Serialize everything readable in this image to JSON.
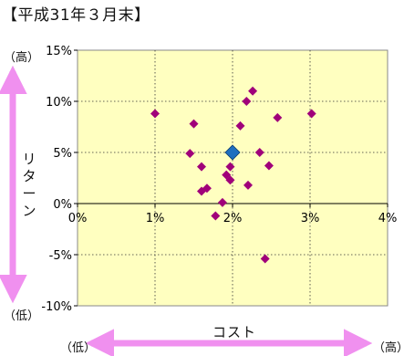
{
  "title": "【平成31年３月末】",
  "labels": {
    "high_top": "（高）",
    "low_left": "（低）",
    "low_bottom": "（低）",
    "high_right": "（高）"
  },
  "colors": {
    "plot_bg": "#ffffc0",
    "point": "#a0007a",
    "highlight": "#1f6fbf",
    "arrow": "#f090ef"
  },
  "chart_data": {
    "type": "scatter",
    "xlabel": "コスト",
    "ylabel": "リターン",
    "xlim": [
      0,
      4
    ],
    "ylim": [
      -10,
      15
    ],
    "x_ticks": [
      {
        "value": 0,
        "label": "0%"
      },
      {
        "value": 1,
        "label": "1%"
      },
      {
        "value": 2,
        "label": "2%"
      },
      {
        "value": 3,
        "label": "3%"
      },
      {
        "value": 4,
        "label": "4%"
      }
    ],
    "y_ticks": [
      {
        "value": 15,
        "label": "15%"
      },
      {
        "value": 10,
        "label": "10%"
      },
      {
        "value": 5,
        "label": "5%"
      },
      {
        "value": 0,
        "label": "0%"
      },
      {
        "value": -5,
        "label": "-5%"
      },
      {
        "value": -10,
        "label": "-10%"
      }
    ],
    "grid": true,
    "series": [
      {
        "points": [
          {
            "x": 1.0,
            "y": 8.8
          },
          {
            "x": 1.5,
            "y": 7.8
          },
          {
            "x": 1.45,
            "y": 4.9
          },
          {
            "x": 1.6,
            "y": 3.6
          },
          {
            "x": 1.6,
            "y": 1.2
          },
          {
            "x": 1.67,
            "y": 1.5
          },
          {
            "x": 1.78,
            "y": -1.2
          },
          {
            "x": 1.87,
            "y": 0.1
          },
          {
            "x": 1.92,
            "y": 2.8
          },
          {
            "x": 1.97,
            "y": 3.6
          },
          {
            "x": 1.97,
            "y": 2.3
          },
          {
            "x": 2.1,
            "y": 7.6
          },
          {
            "x": 2.18,
            "y": 10.0
          },
          {
            "x": 2.26,
            "y": 11.0
          },
          {
            "x": 2.2,
            "y": 1.8
          },
          {
            "x": 2.35,
            "y": 5.0
          },
          {
            "x": 2.47,
            "y": 3.7
          },
          {
            "x": 2.58,
            "y": 8.4
          },
          {
            "x": 3.02,
            "y": 8.8
          },
          {
            "x": 2.42,
            "y": -5.4
          }
        ]
      },
      {
        "points": [
          {
            "x": 2.0,
            "y": 5.0
          }
        ]
      }
    ]
  }
}
